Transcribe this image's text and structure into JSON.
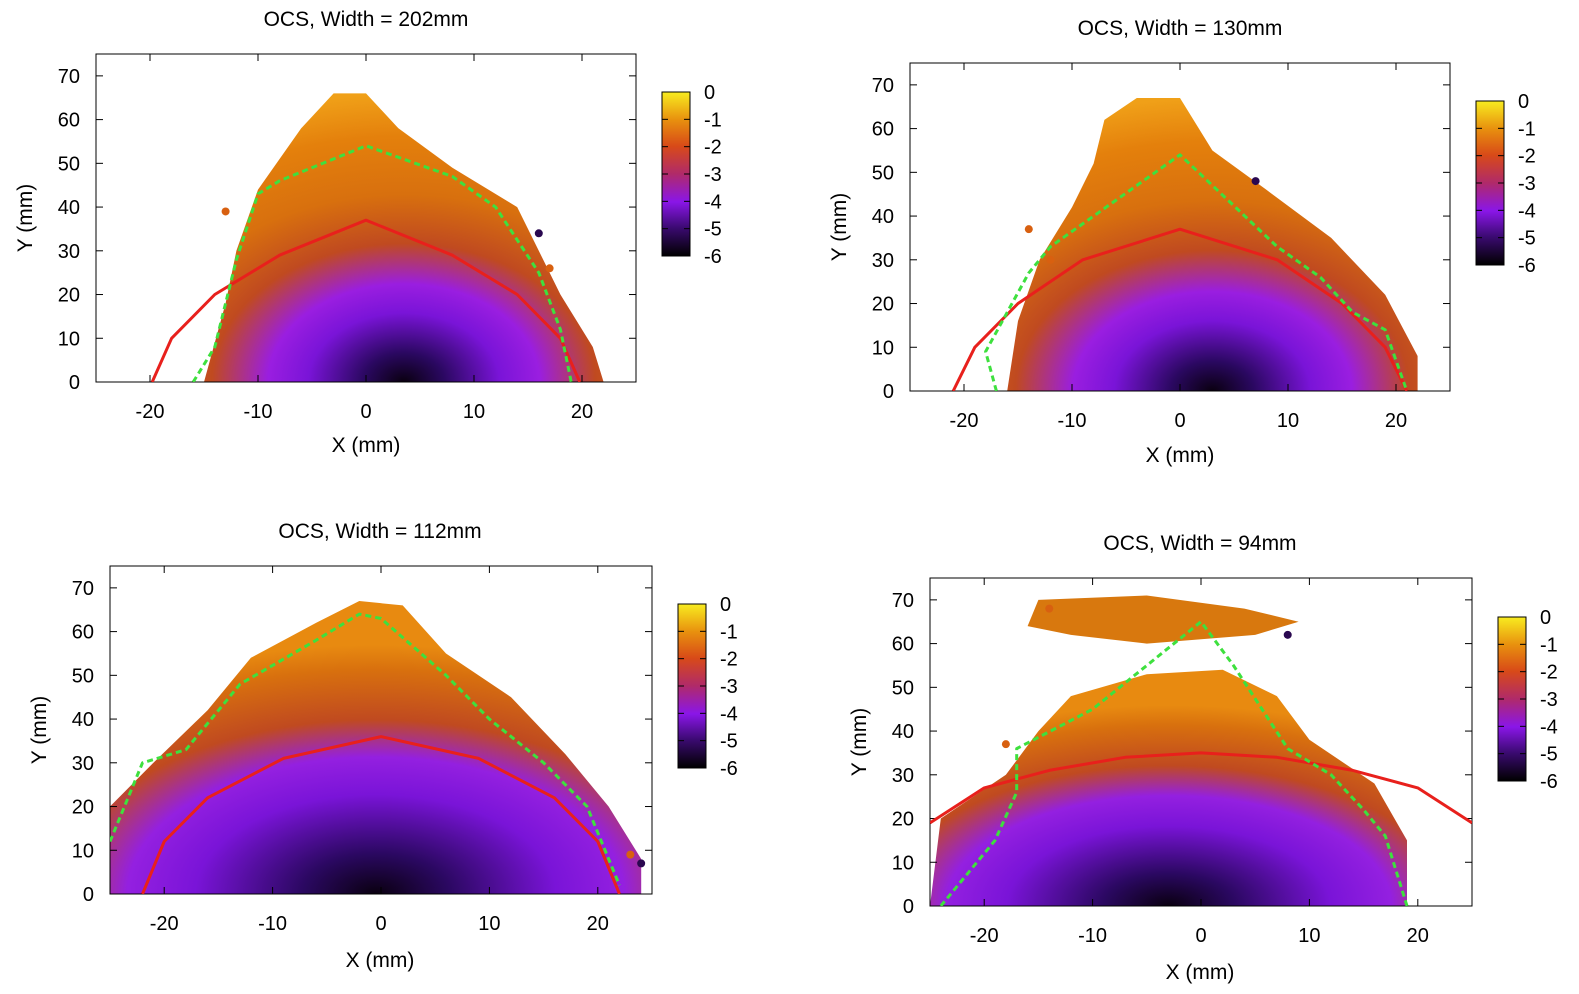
{
  "chart_data": [
    {
      "type": "heatmap",
      "title": "OCS, Width = 202mm",
      "xlabel": "X (mm)",
      "ylabel": "Y (mm)",
      "xlim": [
        -25,
        25
      ],
      "ylim": [
        0,
        75
      ],
      "xticks": [
        -20,
        -10,
        0,
        10,
        20
      ],
      "yticks": [
        0,
        10,
        20,
        30,
        40,
        50,
        60,
        70
      ],
      "colorbar": {
        "min": -6,
        "max": 0,
        "ticks": [
          0,
          -1,
          -2,
          -3,
          -4,
          -5,
          -6
        ]
      },
      "lines": [
        {
          "color": "#e8201c",
          "style": "solid",
          "points": [
            [
              -19.8,
              0
            ],
            [
              -18,
              10
            ],
            [
              -14,
              20
            ],
            [
              -8,
              29
            ],
            [
              0,
              37
            ],
            [
              8,
              29
            ],
            [
              14,
              20
            ],
            [
              18,
              10
            ],
            [
              19.8,
              0
            ]
          ]
        },
        {
          "color": "#3ee03e",
          "style": "dashed",
          "points": [
            [
              -16,
              0
            ],
            [
              -14,
              8
            ],
            [
              -12,
              28
            ],
            [
              -10,
              43
            ],
            [
              -8,
              46
            ],
            [
              0,
              54
            ],
            [
              8,
              47
            ],
            [
              12,
              40
            ],
            [
              16,
              25
            ],
            [
              18,
              12
            ],
            [
              19,
              0
            ]
          ]
        }
      ],
      "scatter_outliers": [
        [
          16,
          34
        ],
        [
          17,
          26
        ],
        [
          -13,
          39
        ]
      ],
      "envelope": [
        [
          -15,
          0
        ],
        [
          -13,
          18
        ],
        [
          -12,
          30
        ],
        [
          -10,
          44
        ],
        [
          -6,
          58
        ],
        [
          -3,
          66
        ],
        [
          0,
          66
        ],
        [
          3,
          58
        ],
        [
          8,
          49
        ],
        [
          14,
          40
        ],
        [
          18,
          20
        ],
        [
          21,
          8
        ],
        [
          22,
          0
        ]
      ]
    },
    {
      "type": "heatmap",
      "title": "OCS, Width = 130mm",
      "xlabel": "X (mm)",
      "ylabel": "Y (mm)",
      "xlim": [
        -25,
        25
      ],
      "ylim": [
        0,
        75
      ],
      "xticks": [
        -20,
        -10,
        0,
        10,
        20
      ],
      "yticks": [
        0,
        10,
        20,
        30,
        40,
        50,
        60,
        70
      ],
      "colorbar": {
        "min": -6,
        "max": 0,
        "ticks": [
          0,
          -1,
          -2,
          -3,
          -4,
          -5,
          -6
        ]
      },
      "lines": [
        {
          "color": "#e8201c",
          "style": "solid",
          "points": [
            [
              -21,
              0
            ],
            [
              -19,
              10
            ],
            [
              -15,
              20
            ],
            [
              -9,
              30
            ],
            [
              0,
              37
            ],
            [
              9,
              30
            ],
            [
              15,
              20
            ],
            [
              19,
              10
            ],
            [
              21,
              0
            ]
          ]
        },
        {
          "color": "#3ee03e",
          "style": "dashed",
          "points": [
            [
              -17,
              0
            ],
            [
              -18,
              9
            ],
            [
              -16,
              18
            ],
            [
              -14,
              27
            ],
            [
              -12,
              33
            ],
            [
              -8,
              40
            ],
            [
              0,
              54
            ],
            [
              6,
              40
            ],
            [
              9,
              33
            ],
            [
              13,
              26
            ],
            [
              16,
              18
            ],
            [
              19,
              14
            ],
            [
              21,
              0
            ]
          ]
        }
      ],
      "scatter_outliers": [
        [
          7,
          48
        ],
        [
          -14,
          37
        ],
        [
          -12,
          30
        ]
      ],
      "envelope": [
        [
          -16,
          0
        ],
        [
          -15,
          16
        ],
        [
          -13,
          30
        ],
        [
          -10,
          42
        ],
        [
          -8,
          52
        ],
        [
          -7,
          62
        ],
        [
          -4,
          67
        ],
        [
          0,
          67
        ],
        [
          3,
          55
        ],
        [
          8,
          46
        ],
        [
          14,
          35
        ],
        [
          19,
          22
        ],
        [
          22,
          8
        ],
        [
          22,
          0
        ]
      ]
    },
    {
      "type": "heatmap",
      "title": "OCS, Width = 112mm",
      "xlabel": "X (mm)",
      "ylabel": "Y (mm)",
      "xlim": [
        -25,
        25
      ],
      "ylim": [
        0,
        75
      ],
      "xticks": [
        -20,
        -10,
        0,
        10,
        20
      ],
      "yticks": [
        0,
        10,
        20,
        30,
        40,
        50,
        60,
        70
      ],
      "colorbar": {
        "min": -6,
        "max": 0,
        "ticks": [
          0,
          -1,
          -2,
          -3,
          -4,
          -5,
          -6
        ]
      },
      "lines": [
        {
          "color": "#e8201c",
          "style": "solid",
          "points": [
            [
              -22,
              0
            ],
            [
              -20,
              12
            ],
            [
              -16,
              22
            ],
            [
              -9,
              31
            ],
            [
              0,
              36
            ],
            [
              9,
              31
            ],
            [
              16,
              22
            ],
            [
              20,
              12
            ],
            [
              22,
              0
            ]
          ]
        },
        {
          "color": "#3ee03e",
          "style": "dashed",
          "points": [
            [
              -25,
              12
            ],
            [
              -22,
              30
            ],
            [
              -18,
              33
            ],
            [
              -13,
              48
            ],
            [
              -6,
              58
            ],
            [
              -2,
              64
            ],
            [
              0,
              63
            ],
            [
              6,
              50
            ],
            [
              10,
              40
            ],
            [
              15,
              30
            ],
            [
              19,
              20
            ],
            [
              22,
              2
            ]
          ]
        }
      ],
      "scatter_outliers": [
        [
          24,
          7
        ],
        [
          23,
          9
        ]
      ],
      "envelope": [
        [
          -25,
          0
        ],
        [
          -25,
          20
        ],
        [
          -21,
          30
        ],
        [
          -16,
          42
        ],
        [
          -12,
          54
        ],
        [
          -6,
          62
        ],
        [
          -2,
          67
        ],
        [
          2,
          66
        ],
        [
          6,
          55
        ],
        [
          12,
          45
        ],
        [
          17,
          32
        ],
        [
          21,
          20
        ],
        [
          24,
          8
        ],
        [
          24,
          0
        ]
      ]
    },
    {
      "type": "heatmap",
      "title": "OCS, Width = 94mm",
      "xlabel": "X (mm)",
      "ylabel": "Y (mm)",
      "xlim": [
        -25,
        25
      ],
      "ylim": [
        0,
        75
      ],
      "xticks": [
        -20,
        -10,
        0,
        10,
        20
      ],
      "yticks": [
        0,
        10,
        20,
        30,
        40,
        50,
        60,
        70
      ],
      "colorbar": {
        "min": -6,
        "max": 0,
        "ticks": [
          0,
          -1,
          -2,
          -3,
          -4,
          -5,
          -6
        ]
      },
      "lines": [
        {
          "color": "#e8201c",
          "style": "solid",
          "points": [
            [
              -25,
              19
            ],
            [
              -20,
              27
            ],
            [
              -14,
              31
            ],
            [
              -7,
              34
            ],
            [
              0,
              35
            ],
            [
              7,
              34
            ],
            [
              14,
              31
            ],
            [
              20,
              27
            ],
            [
              25,
              19
            ]
          ]
        },
        {
          "color": "#3ee03e",
          "style": "dashed",
          "points": [
            [
              -24,
              0
            ],
            [
              -19,
              15
            ],
            [
              -17,
              26
            ],
            [
              -17,
              36
            ],
            [
              -10,
              45
            ],
            [
              0,
              65
            ],
            [
              3,
              55
            ],
            [
              8,
              36
            ],
            [
              12,
              30
            ],
            [
              15,
              22
            ],
            [
              17,
              16
            ],
            [
              19,
              0
            ]
          ]
        }
      ],
      "scatter_outliers": [
        [
          8,
          62
        ],
        [
          -14,
          68
        ],
        [
          -18,
          37
        ]
      ],
      "top_patch": [
        [
          -16,
          64
        ],
        [
          -15,
          70
        ],
        [
          -5,
          71
        ],
        [
          4,
          68
        ],
        [
          9,
          65
        ],
        [
          5,
          62
        ],
        [
          -5,
          60
        ],
        [
          -12,
          62
        ]
      ],
      "envelope": [
        [
          -25,
          0
        ],
        [
          -24,
          20
        ],
        [
          -18,
          30
        ],
        [
          -15,
          40
        ],
        [
          -12,
          48
        ],
        [
          -5,
          53
        ],
        [
          2,
          54
        ],
        [
          7,
          48
        ],
        [
          10,
          38
        ],
        [
          16,
          28
        ],
        [
          19,
          15
        ],
        [
          19,
          0
        ]
      ]
    }
  ]
}
